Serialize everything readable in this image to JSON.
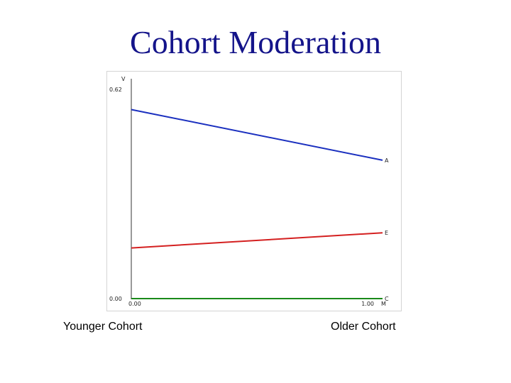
{
  "slide": {
    "title": "Cohort Moderation",
    "left_caption": "Younger Cohort",
    "right_caption": "Older Cohort"
  },
  "chart_data": {
    "type": "line",
    "title": "",
    "xlabel": "M",
    "ylabel": "V",
    "x": [
      0,
      1
    ],
    "x_tick_labels": [
      "0.00",
      "1.00"
    ],
    "y_tick_labels": [
      "0.00",
      "0.62"
    ],
    "xlim": [
      0,
      1
    ],
    "ylim": [
      0,
      0.62
    ],
    "grid": false,
    "series": [
      {
        "name": "A",
        "values": [
          0.56,
          0.41
        ],
        "color": "#1a2fbf"
      },
      {
        "name": "E",
        "values": [
          0.15,
          0.195
        ],
        "color": "#d42020"
      },
      {
        "name": "C",
        "values": [
          0.0,
          0.0
        ],
        "color": "#1a8a1a"
      }
    ]
  }
}
